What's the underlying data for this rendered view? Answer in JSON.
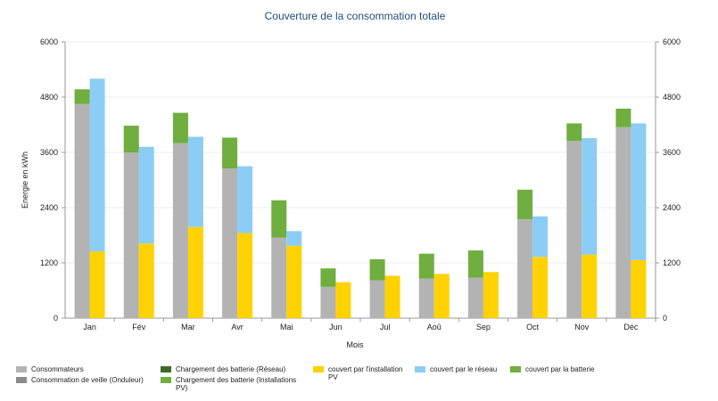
{
  "chart_data": {
    "type": "bar",
    "title": "Couverture de la consommation totale",
    "xlabel": "Mois",
    "ylabel": "Energie en kWh",
    "categories": [
      "Jan",
      "Fév",
      "Mar",
      "Avr",
      "Mai",
      "Jun",
      "Jul",
      "Aoû",
      "Sep",
      "Oct",
      "Nov",
      "Déc"
    ],
    "yticks": [
      "0",
      "1200",
      "2400",
      "3600",
      "4800",
      "6000"
    ],
    "ylim": [
      0,
      6000
    ],
    "grid": true,
    "legend_position": "bottom",
    "left_stack": [
      {
        "name": "Consommateurs",
        "color": "#b3b3b3",
        "values": [
          4650,
          3600,
          3800,
          3250,
          1750,
          680,
          820,
          860,
          880,
          2150,
          3850,
          4150
        ]
      },
      {
        "name": "Consommation de veille (Onduleur)",
        "color": "#8c8c8c",
        "values": [
          0,
          0,
          0,
          0,
          0,
          0,
          0,
          0,
          0,
          0,
          0,
          0
        ]
      },
      {
        "name": "Chargement des batterie (Réseau)",
        "color": "#3d6b2a",
        "values": [
          0,
          0,
          0,
          0,
          0,
          0,
          0,
          0,
          0,
          0,
          0,
          0
        ]
      },
      {
        "name": "Chargement des batterie (Installations PV)",
        "color": "#6fae3f",
        "values": [
          320,
          580,
          660,
          670,
          810,
          400,
          460,
          540,
          590,
          640,
          380,
          400
        ]
      }
    ],
    "right_stack": [
      {
        "name": "couvert par l'installation PV",
        "color": "#ffd200",
        "values": [
          1450,
          1620,
          1980,
          1850,
          1570,
          780,
          920,
          960,
          1000,
          1330,
          1380,
          1260
        ]
      },
      {
        "name": "couvert par le réseau",
        "color": "#8ccdf5",
        "values": [
          3750,
          2100,
          1960,
          1450,
          320,
          0,
          0,
          0,
          0,
          880,
          2530,
          2970
        ]
      },
      {
        "name": "couvert par la batterie",
        "color": "#6fae3f",
        "values": [
          0,
          0,
          0,
          0,
          0,
          0,
          0,
          0,
          0,
          0,
          0,
          0
        ]
      }
    ]
  },
  "legend": [
    {
      "label": "Consommateurs",
      "color": "#b3b3b3"
    },
    {
      "label": "Consommation de veille (Onduleur)",
      "color": "#8c8c8c"
    },
    {
      "label": "Chargement des batterie (Réseau)",
      "color": "#3d6b2a"
    },
    {
      "label": "Chargement des batterie (Installations PV)",
      "color": "#6fae3f"
    },
    {
      "label": "couvert par l'installation PV",
      "color": "#ffd200"
    },
    {
      "label": "couvert par le réseau",
      "color": "#8ccdf5"
    },
    {
      "label": "couvert par la batterie",
      "color": "#6fae3f"
    }
  ]
}
